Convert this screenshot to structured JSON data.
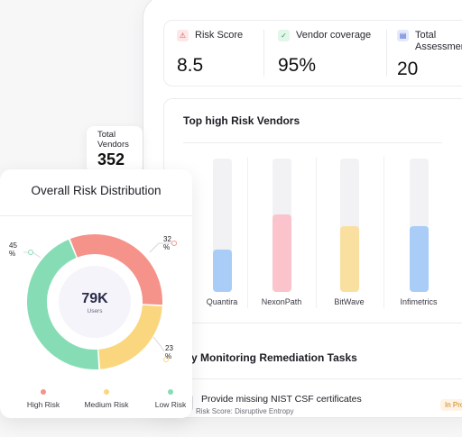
{
  "stats": [
    {
      "label": "Risk Score",
      "value": "8.5",
      "icon": "alert-triangle-icon"
    },
    {
      "label": "Vendor coverage",
      "value": "95%",
      "icon": "shield-check-icon"
    },
    {
      "label": "Total Assessments",
      "value": "20",
      "icon": "clipboard-icon"
    }
  ],
  "vendors_card": {
    "title": "Top high Risk Vendors"
  },
  "chart_data": [
    {
      "type": "bar",
      "title": "Top high Risk Vendors",
      "categories": [
        "Quantira",
        "NexonPath",
        "BitWave",
        "Infimetrics"
      ],
      "values": [
        32,
        58,
        49,
        49
      ],
      "ylim": [
        0,
        100
      ],
      "colors": [
        "#a9cdf7",
        "#fbc4cc",
        "#f9e0a0",
        "#a9cdf7"
      ]
    },
    {
      "type": "pie",
      "title": "Overall Risk Distribution",
      "categories": [
        "High Risk",
        "Medium Risk",
        "Low Risk"
      ],
      "values": [
        32,
        23,
        45
      ],
      "colors": [
        "#f5938b",
        "#fad77f",
        "#86ddb5"
      ]
    }
  ],
  "total_vendors": {
    "label_line1": "Total",
    "label_line2": "Vendors",
    "value": "352"
  },
  "donut": {
    "title": "Overall Risk Distribution",
    "center_value": "79K",
    "center_label": "Users",
    "labels": {
      "high": "32\n%",
      "medium": "23\n%",
      "low": "45\n%"
    },
    "legend": [
      {
        "label": "High Risk",
        "color": "#f5938b"
      },
      {
        "label": "Medium Risk",
        "color": "#fad77f"
      },
      {
        "label": "Low Risk",
        "color": "#86ddb5"
      }
    ]
  },
  "remediation": {
    "title": "y Monitoring Remediation Tasks",
    "task": "Provide missing NIST CSF certificates",
    "sub": "Risk Score: Disruptive Entropy",
    "status": "In Pro"
  }
}
